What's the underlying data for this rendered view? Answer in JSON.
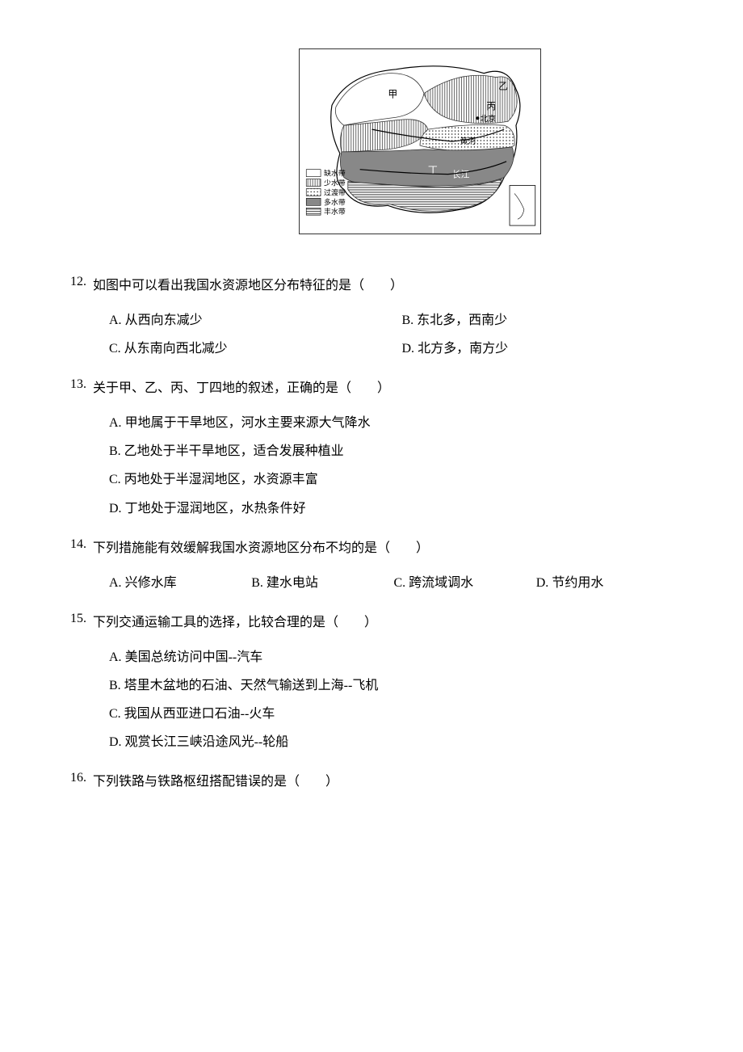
{
  "map": {
    "legend": {
      "items": [
        {
          "label": "缺水带",
          "pattern": "blank"
        },
        {
          "label": "少水带",
          "pattern": "vlines"
        },
        {
          "label": "过渡带",
          "pattern": "dots"
        },
        {
          "label": "多水带",
          "pattern": "gray"
        },
        {
          "label": "丰水带",
          "pattern": "hlines"
        }
      ]
    },
    "annotations": [
      "甲",
      "乙",
      "丙",
      "丁",
      "北京",
      "黄河",
      "长江"
    ],
    "border_color": "#333333",
    "background_color": "#ffffff"
  },
  "questions": [
    {
      "number": "12.",
      "stem": "如图中可以看出我国水资源地区分布特征的是（　　）",
      "layout": "2col",
      "options": [
        {
          "label": "A.",
          "text": "从西向东减少"
        },
        {
          "label": "B.",
          "text": "东北多，西南少"
        },
        {
          "label": "C.",
          "text": "从东南向西北减少"
        },
        {
          "label": "D.",
          "text": "北方多，南方少"
        }
      ]
    },
    {
      "number": "13.",
      "stem": "关于甲、乙、丙、丁四地的叙述，正确的是（　　）",
      "layout": "1col",
      "options": [
        {
          "label": "A.",
          "text": "甲地属于干旱地区，河水主要来源大气降水"
        },
        {
          "label": "B.",
          "text": "乙地处于半干旱地区，适合发展种植业"
        },
        {
          "label": "C.",
          "text": "丙地处于半湿润地区，水资源丰富"
        },
        {
          "label": "D.",
          "text": "丁地处于湿润地区，水热条件好"
        }
      ]
    },
    {
      "number": "14.",
      "stem": "下列措施能有效缓解我国水资源地区分布不均的是（　　）",
      "layout": "4col",
      "options": [
        {
          "label": "A.",
          "text": "兴修水库"
        },
        {
          "label": "B.",
          "text": "建水电站"
        },
        {
          "label": "C.",
          "text": "跨流域调水"
        },
        {
          "label": "D.",
          "text": "节约用水"
        }
      ]
    },
    {
      "number": "15.",
      "stem": "下列交通运输工具的选择，比较合理的是（　　）",
      "layout": "1col",
      "options": [
        {
          "label": "A.",
          "text": "美国总统访问中国--汽车"
        },
        {
          "label": "B.",
          "text": "塔里木盆地的石油、天然气输送到上海--飞机"
        },
        {
          "label": "C.",
          "text": "我国从西亚进口石油--火车"
        },
        {
          "label": "D.",
          "text": "观赏长江三峡沿途风光--轮船"
        }
      ]
    },
    {
      "number": "16.",
      "stem": "下列铁路与铁路枢纽搭配错误的是（　　）",
      "layout": "none",
      "options": []
    }
  ],
  "text_color": "#000000",
  "background_color": "#ffffff",
  "font_size": 16
}
